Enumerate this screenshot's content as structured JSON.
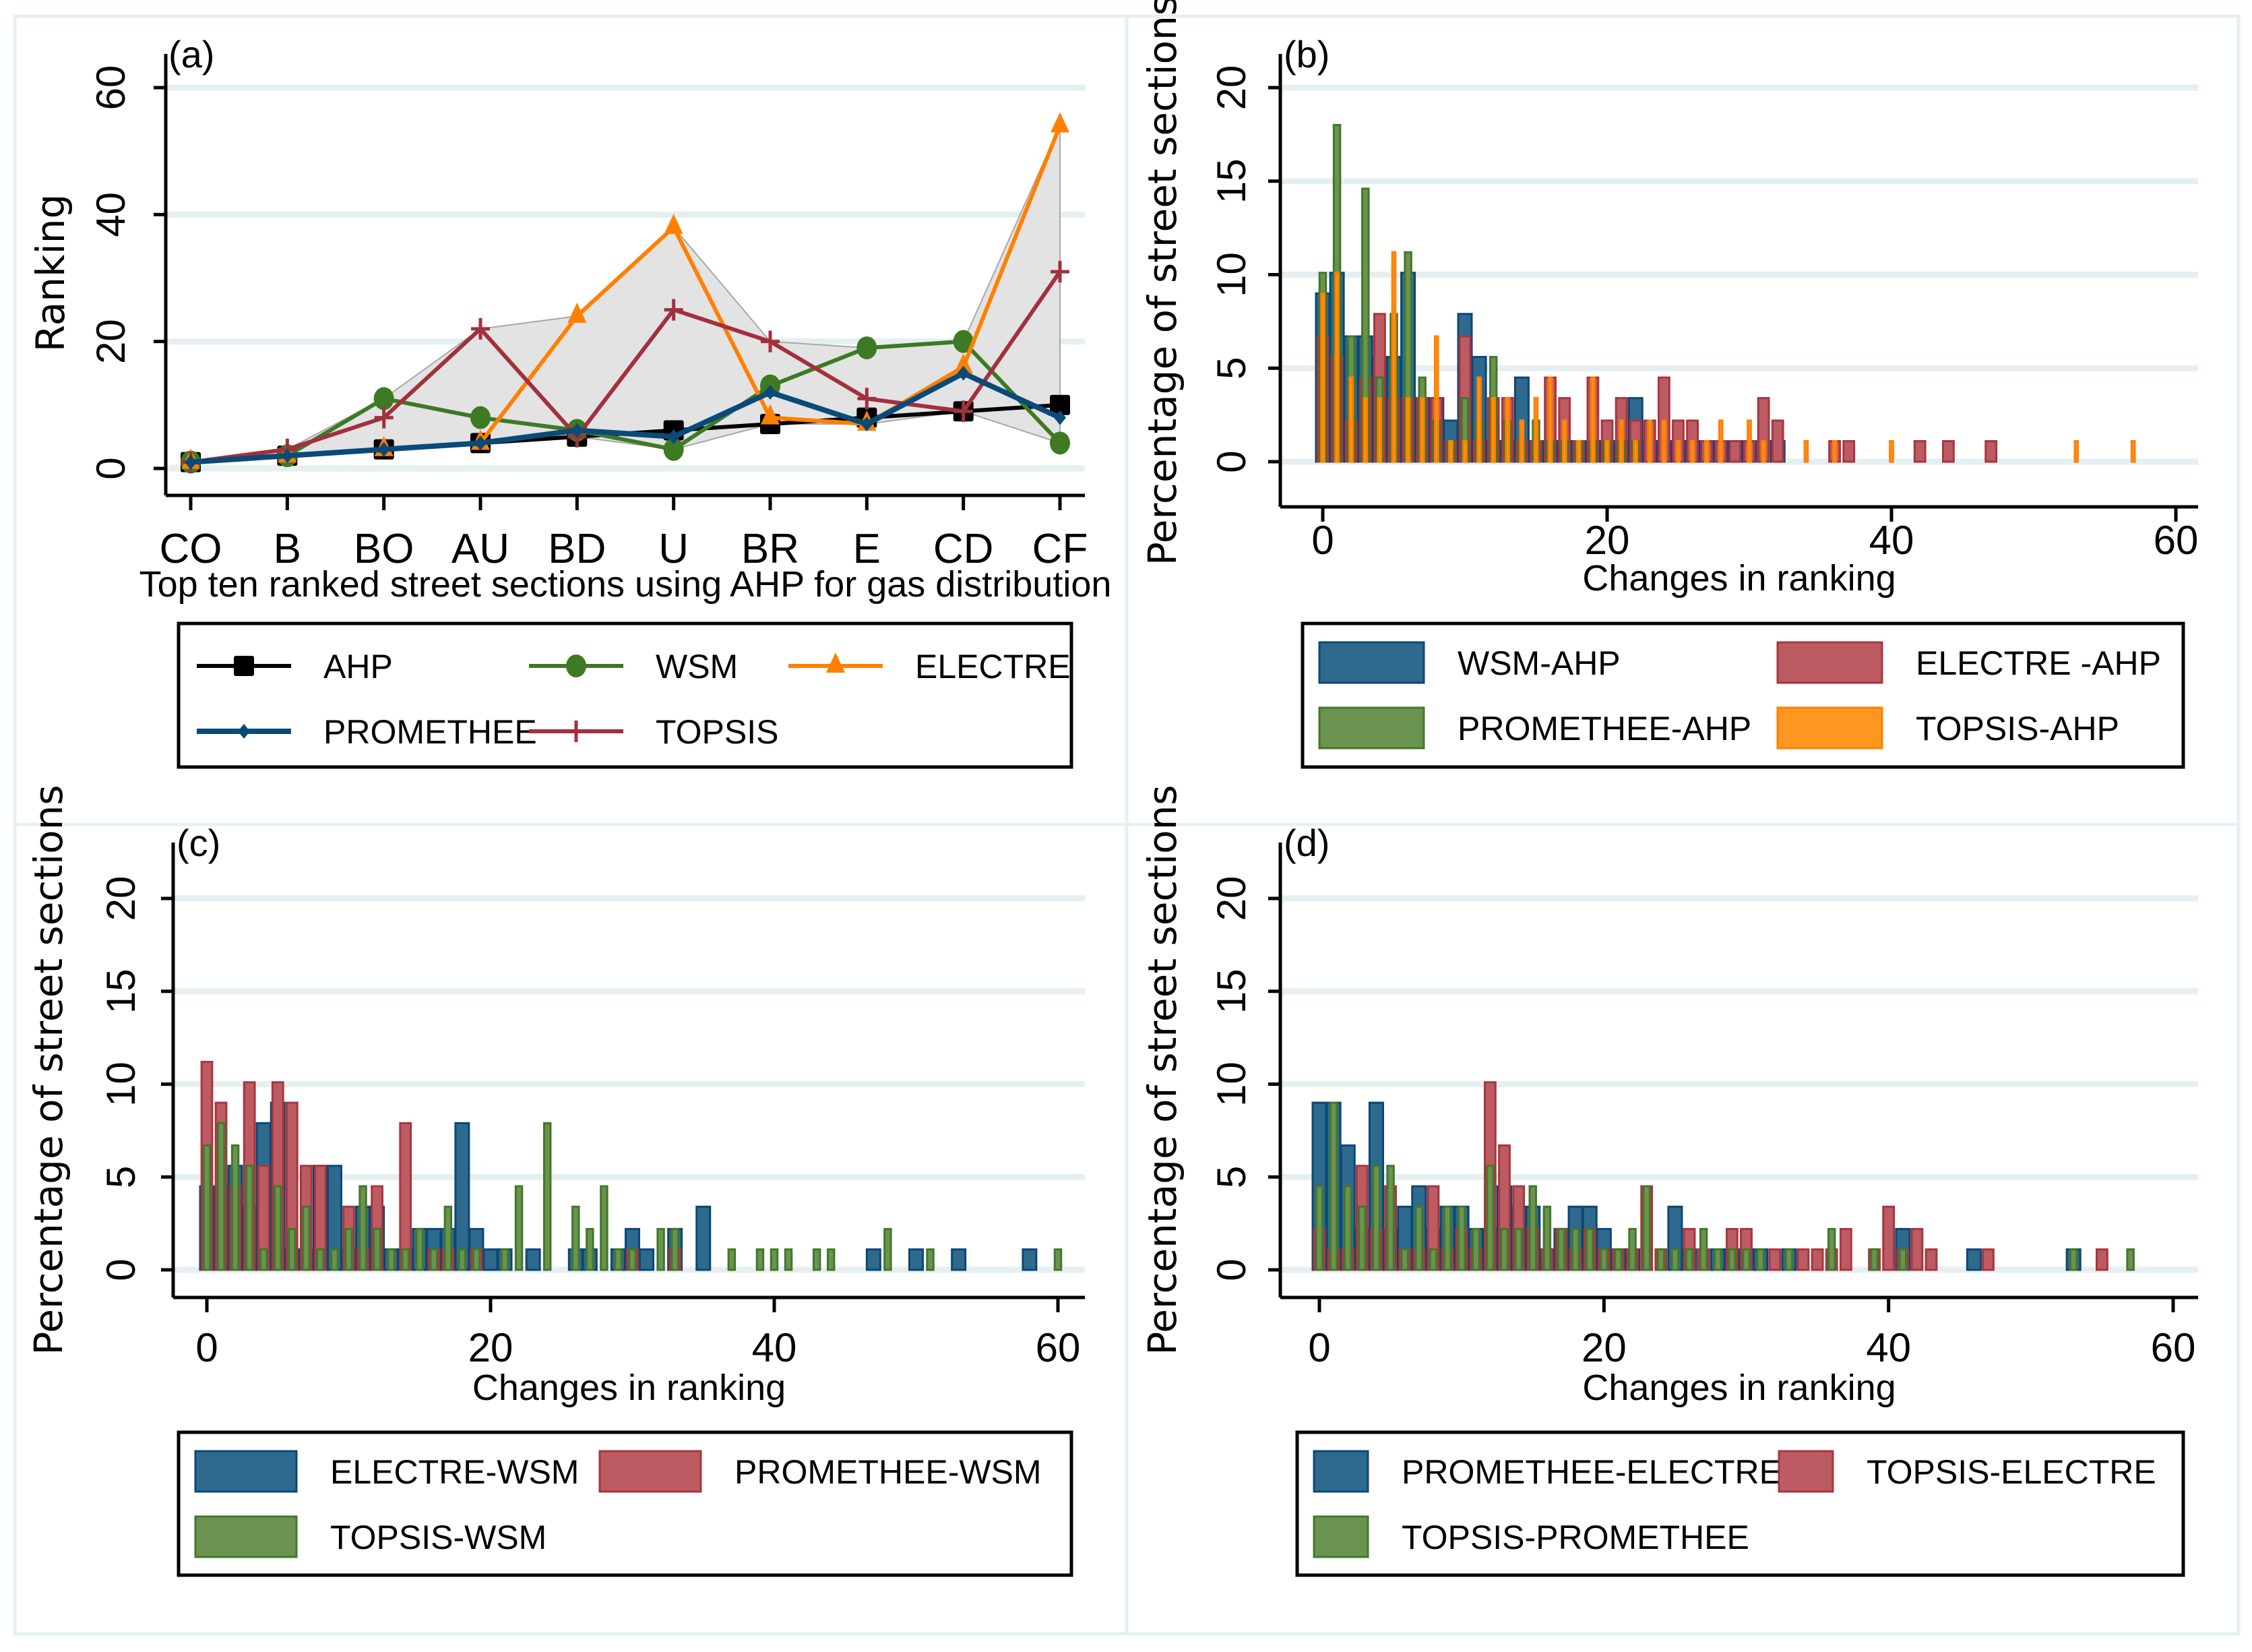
{
  "figure": {
    "panels": [
      "(a)",
      "(b)",
      "(c)",
      "(d)"
    ]
  },
  "colors": {
    "AHP": "#000000",
    "WSM": "#3d7a23",
    "ELECTRE": "#ff8000",
    "PROMETHEE": "#0a4a78",
    "TOPSIS": "#a3303d",
    "bar_blue": "#2e6a8e",
    "bar_blue_edge": "#0c4775",
    "bar_red": "#bc5b62",
    "bar_red_edge": "#a83540",
    "bar_green": "#6a9350",
    "bar_green_edge": "#43772a",
    "bar_orange": "#ff961f",
    "bar_orange_edge": "#ff8000",
    "range_fill": "#e3e3e3",
    "grid": "#e5eff1"
  },
  "chart_data": [
    {
      "id": "a",
      "panel_label": "(a)",
      "type": "line",
      "title": "",
      "xlabel": "Top ten ranked street sections using AHP for gas distribution",
      "ylabel": "Ranking",
      "categories": [
        "CO",
        "B",
        "BO",
        "AU",
        "BD",
        "U",
        "BR",
        "E",
        "CD",
        "CF"
      ],
      "ylim": [
        -4,
        62
      ],
      "yticks": [
        0,
        20,
        40,
        60
      ],
      "grid": true,
      "range_band": "min-max shaded area across all methods",
      "series": [
        {
          "name": "AHP",
          "marker": "square",
          "values": [
            1,
            2,
            3,
            4,
            5,
            6,
            7,
            8,
            9,
            10
          ]
        },
        {
          "name": "WSM",
          "marker": "circle",
          "values": [
            1,
            2,
            11,
            8,
            6,
            3,
            13,
            19,
            20,
            4
          ]
        },
        {
          "name": "ELECTRE",
          "marker": "triangle",
          "values": [
            1,
            2,
            3,
            4,
            24,
            38,
            8,
            7,
            16,
            54
          ]
        },
        {
          "name": "PROMETHEE",
          "marker": "diamond",
          "values": [
            1,
            2,
            3,
            4,
            6,
            5,
            12,
            7,
            15,
            8
          ]
        },
        {
          "name": "TOPSIS",
          "marker": "plus",
          "values": [
            1,
            3,
            8,
            22,
            5,
            25,
            20,
            11,
            9,
            31
          ]
        }
      ],
      "legend": {
        "position": "bottom",
        "rows": [
          [
            "AHP",
            "WSM",
            "ELECTRE"
          ],
          [
            "PROMETHEE",
            "TOPSIS"
          ]
        ]
      }
    },
    {
      "id": "b",
      "panel_label": "(b)",
      "type": "bar",
      "xlabel": "Changes in ranking",
      "ylabel": "Percentage of street sections",
      "xlim": [
        -1,
        60
      ],
      "xticks": [
        0,
        20,
        40,
        60
      ],
      "ylim": [
        -1.5,
        21
      ],
      "yticks": [
        0,
        5,
        10,
        15,
        20
      ],
      "grid": true,
      "series": [
        {
          "name": "WSM-AHP",
          "style": "blue",
          "x": [
            0,
            1,
            2,
            3,
            4,
            5,
            6,
            7,
            8,
            9,
            10,
            11,
            12,
            13,
            14,
            15,
            16,
            17,
            18,
            19,
            20,
            21,
            22,
            23,
            24,
            25,
            26,
            27,
            28,
            29,
            30,
            32
          ],
          "values": [
            9.0,
            10.1,
            6.7,
            6.7,
            5.6,
            5.6,
            10.1,
            3.4,
            3.4,
            2.2,
            7.9,
            5.6,
            1.1,
            1.1,
            4.5,
            1.1,
            1.1,
            1.1,
            1.1,
            1.1,
            1.1,
            1.1,
            3.4,
            1.1,
            1.1,
            1.1,
            1.1,
            1.1,
            1.1,
            1.1,
            1.1,
            1.1
          ]
        },
        {
          "name": "ELECTRE -AHP",
          "style": "red",
          "x": [
            0,
            1,
            2,
            3,
            4,
            5,
            6,
            7,
            8,
            9,
            10,
            11,
            12,
            13,
            14,
            15,
            16,
            17,
            18,
            19,
            20,
            21,
            22,
            23,
            24,
            25,
            26,
            27,
            28,
            29,
            30,
            31,
            32,
            36,
            37,
            42,
            44,
            47
          ],
          "values": [
            6.7,
            5.6,
            2.2,
            4.5,
            7.9,
            3.4,
            3.4,
            3.4,
            3.4,
            1.1,
            6.7,
            1.1,
            3.4,
            3.4,
            1.1,
            1.1,
            4.5,
            3.4,
            1.1,
            4.5,
            2.2,
            3.4,
            2.2,
            2.2,
            4.5,
            2.2,
            2.2,
            1.1,
            1.1,
            1.1,
            1.1,
            3.4,
            2.2,
            1.1,
            1.1,
            1.1,
            1.1,
            1.1
          ]
        },
        {
          "name": "PROMETHEE-AHP",
          "style": "green",
          "x": [
            0,
            1,
            2,
            3,
            4,
            5,
            6,
            7,
            8,
            9,
            10,
            11,
            12,
            13,
            14,
            15,
            16,
            17,
            18,
            19,
            20,
            21,
            22
          ],
          "values": [
            10.1,
            18.0,
            6.7,
            14.6,
            4.5,
            7.9,
            11.2,
            4.5,
            2.2,
            1.1,
            3.4,
            2.2,
            5.6,
            2.2,
            1.1,
            2.2,
            1.1,
            1.1,
            1.1,
            1.1,
            1.1,
            1.1,
            1.1
          ]
        },
        {
          "name": "TOPSIS-AHP",
          "style": "orange",
          "x": [
            0,
            1,
            2,
            3,
            4,
            5,
            6,
            7,
            8,
            9,
            10,
            11,
            12,
            13,
            14,
            15,
            16,
            17,
            18,
            19,
            20,
            21,
            22,
            23,
            24,
            25,
            26,
            27,
            28,
            30,
            31,
            34,
            36,
            40,
            53,
            57
          ],
          "values": [
            9.0,
            10.1,
            4.5,
            3.4,
            3.4,
            11.2,
            3.4,
            3.4,
            6.7,
            1.1,
            1.1,
            4.5,
            3.4,
            3.4,
            2.2,
            3.4,
            4.5,
            2.2,
            1.1,
            4.5,
            1.1,
            2.2,
            1.1,
            2.2,
            2.2,
            1.1,
            1.1,
            1.1,
            2.2,
            2.2,
            1.1,
            1.1,
            1.1,
            1.1,
            1.1,
            1.1
          ]
        }
      ],
      "legend": {
        "position": "bottom",
        "rows": [
          [
            "WSM-AHP",
            "ELECTRE -AHP"
          ],
          [
            "PROMETHEE-AHP",
            "TOPSIS-AHP"
          ]
        ]
      }
    },
    {
      "id": "c",
      "panel_label": "(c)",
      "type": "bar",
      "xlabel": "Changes in ranking",
      "ylabel": "Percentage of street sections",
      "xlim": [
        -1,
        61
      ],
      "xticks": [
        0,
        20,
        40,
        60
      ],
      "ylim": [
        -1.5,
        21
      ],
      "yticks": [
        0,
        5,
        10,
        15,
        20
      ],
      "grid": true,
      "series": [
        {
          "name": "ELECTRE-WSM",
          "style": "blue",
          "x": [
            0,
            1,
            2,
            3,
            4,
            5,
            6,
            7,
            8,
            9,
            10,
            11,
            12,
            13,
            14,
            15,
            16,
            17,
            18,
            19,
            20,
            21,
            23,
            26,
            27,
            29,
            30,
            31,
            33,
            35,
            47,
            50,
            53,
            58
          ],
          "values": [
            4.5,
            4.5,
            5.6,
            3.4,
            7.9,
            9.0,
            1.1,
            1.1,
            5.6,
            5.6,
            1.1,
            3.4,
            3.4,
            1.1,
            1.1,
            2.2,
            2.2,
            2.2,
            7.9,
            2.2,
            1.1,
            1.1,
            1.1,
            1.1,
            1.1,
            1.1,
            2.2,
            1.1,
            2.2,
            3.4,
            1.1,
            1.1,
            1.1,
            1.1
          ]
        },
        {
          "name": "PROMETHEE-WSM",
          "style": "red",
          "x": [
            0,
            1,
            2,
            3,
            4,
            5,
            6,
            7,
            8,
            10,
            11,
            12,
            14,
            16,
            17,
            19,
            30,
            33
          ],
          "values": [
            11.2,
            9.0,
            4.5,
            10.1,
            5.6,
            10.1,
            9.0,
            5.6,
            5.6,
            3.4,
            1.1,
            4.5,
            7.9,
            1.1,
            1.1,
            1.1,
            1.1,
            1.1
          ]
        },
        {
          "name": "TOPSIS-WSM",
          "style": "green",
          "x": [
            0,
            1,
            2,
            3,
            4,
            5,
            6,
            7,
            8,
            9,
            10,
            11,
            12,
            13,
            14,
            15,
            16,
            17,
            18,
            19,
            21,
            22,
            24,
            26,
            27,
            28,
            29,
            30,
            32,
            33,
            37,
            39,
            40,
            41,
            43,
            44,
            48,
            51,
            60
          ],
          "values": [
            6.7,
            7.9,
            6.7,
            5.6,
            1.1,
            4.5,
            2.2,
            3.4,
            1.1,
            1.1,
            2.2,
            4.5,
            2.2,
            1.1,
            1.1,
            2.2,
            1.1,
            3.4,
            1.1,
            1.1,
            1.1,
            4.5,
            7.9,
            3.4,
            2.2,
            4.5,
            1.1,
            1.1,
            2.2,
            2.2,
            1.1,
            1.1,
            1.1,
            1.1,
            1.1,
            1.1,
            2.2,
            1.1,
            1.1
          ]
        }
      ],
      "legend": {
        "position": "bottom",
        "rows": [
          [
            "ELECTRE-WSM",
            "PROMETHEE-WSM"
          ],
          [
            "TOPSIS-WSM"
          ]
        ]
      }
    },
    {
      "id": "d",
      "panel_label": "(d)",
      "type": "bar",
      "xlabel": "Changes in ranking",
      "ylabel": "Percentage of street sections",
      "xlim": [
        -1,
        60
      ],
      "xticks": [
        0,
        20,
        40,
        60
      ],
      "ylim": [
        -1.5,
        21
      ],
      "yticks": [
        0,
        5,
        10,
        15,
        20
      ],
      "grid": true,
      "series": [
        {
          "name": "PROMETHEE-ELECTRE",
          "style": "blue",
          "x": [
            0,
            1,
            2,
            3,
            4,
            5,
            6,
            7,
            8,
            9,
            10,
            11,
            12,
            13,
            14,
            15,
            16,
            17,
            18,
            19,
            20,
            21,
            22,
            25,
            26,
            28,
            29,
            30,
            31,
            33,
            41,
            46,
            53
          ],
          "values": [
            9.0,
            9.0,
            6.7,
            2.2,
            9.0,
            2.2,
            3.4,
            4.5,
            2.2,
            3.4,
            3.4,
            2.2,
            2.2,
            4.5,
            3.4,
            3.4,
            1.1,
            2.2,
            3.4,
            3.4,
            2.2,
            1.1,
            1.1,
            3.4,
            1.1,
            1.1,
            1.1,
            1.1,
            1.1,
            1.1,
            2.2,
            1.1,
            1.1
          ]
        },
        {
          "name": "TOPSIS-ELECTRE",
          "style": "red",
          "x": [
            0,
            1,
            2,
            3,
            4,
            5,
            6,
            7,
            8,
            9,
            10,
            11,
            12,
            13,
            14,
            15,
            16,
            17,
            18,
            19,
            20,
            21,
            22,
            23,
            24,
            26,
            27,
            29,
            30,
            32,
            34,
            35,
            36,
            37,
            39,
            40,
            41,
            42,
            43,
            47,
            55
          ],
          "values": [
            2.2,
            1.1,
            1.1,
            5.6,
            2.2,
            4.5,
            1.1,
            1.1,
            4.5,
            1.1,
            2.2,
            1.1,
            10.1,
            6.7,
            4.5,
            2.2,
            1.1,
            2.2,
            1.1,
            2.2,
            1.1,
            1.1,
            1.1,
            4.5,
            1.1,
            2.2,
            1.1,
            2.2,
            2.2,
            1.1,
            1.1,
            1.1,
            1.1,
            2.2,
            1.1,
            3.4,
            1.1,
            2.2,
            1.1,
            1.1,
            1.1
          ]
        },
        {
          "name": "TOPSIS-PROMETHEE",
          "style": "green",
          "x": [
            0,
            1,
            2,
            3,
            4,
            5,
            6,
            7,
            8,
            9,
            10,
            11,
            12,
            13,
            14,
            15,
            16,
            17,
            18,
            19,
            20,
            21,
            22,
            23,
            24,
            25,
            26,
            27,
            28,
            29,
            30,
            31,
            33,
            36,
            39,
            41,
            53,
            57
          ],
          "values": [
            4.5,
            9.0,
            4.5,
            3.4,
            5.6,
            5.6,
            1.1,
            3.4,
            1.1,
            3.4,
            3.4,
            2.2,
            5.6,
            2.2,
            2.2,
            4.5,
            3.4,
            2.2,
            2.2,
            2.2,
            1.1,
            1.1,
            2.2,
            4.5,
            1.1,
            1.1,
            1.1,
            2.2,
            1.1,
            1.1,
            1.1,
            1.1,
            1.1,
            2.2,
            1.1,
            1.1,
            1.1,
            1.1
          ]
        }
      ],
      "legend": {
        "position": "bottom",
        "rows": [
          [
            "PROMETHEE-ELECTRE",
            "TOPSIS-ELECTRE"
          ],
          [
            "TOPSIS-PROMETHEE"
          ]
        ]
      }
    }
  ]
}
